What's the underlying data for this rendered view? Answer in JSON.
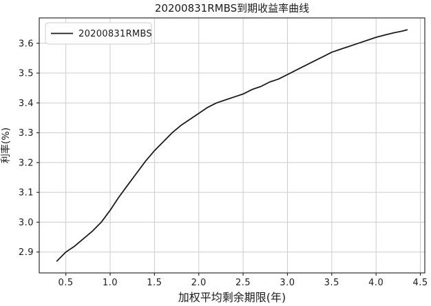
{
  "title": "20200831RMBS到期收益率曲线",
  "chart_data": {
    "type": "line",
    "title": "20200831RMBS到期收益率曲线",
    "xlabel": "加权平均剩余期限(年)",
    "ylabel": "利率(%)",
    "xlim": [
      0.2,
      4.55
    ],
    "ylim": [
      2.83,
      3.685
    ],
    "xticks": [
      0.5,
      1.0,
      1.5,
      2.0,
      2.5,
      3.0,
      3.5,
      4.0,
      4.5
    ],
    "yticks": [
      2.9,
      3.0,
      3.1,
      3.2,
      3.3,
      3.4,
      3.5,
      3.6
    ],
    "grid": true,
    "legend": {
      "position": "upper-left",
      "entries": [
        {
          "label": "20200831RMBS",
          "color": "#1a1a1a"
        }
      ]
    },
    "series": [
      {
        "name": "20200831RMBS",
        "color": "#1a1a1a",
        "x": [
          0.4,
          0.5,
          0.6,
          0.7,
          0.8,
          0.9,
          1.0,
          1.1,
          1.2,
          1.3,
          1.4,
          1.5,
          1.6,
          1.7,
          1.8,
          1.9,
          2.0,
          2.1,
          2.2,
          2.3,
          2.4,
          2.5,
          2.6,
          2.7,
          2.8,
          2.9,
          3.0,
          3.1,
          3.2,
          3.3,
          3.4,
          3.5,
          3.6,
          3.7,
          3.8,
          3.9,
          4.0,
          4.1,
          4.2,
          4.3,
          4.35
        ],
        "y": [
          2.87,
          2.9,
          2.92,
          2.945,
          2.97,
          3.0,
          3.04,
          3.085,
          3.125,
          3.165,
          3.205,
          3.24,
          3.27,
          3.3,
          3.325,
          3.345,
          3.365,
          3.385,
          3.4,
          3.41,
          3.42,
          3.43,
          3.445,
          3.455,
          3.47,
          3.48,
          3.495,
          3.51,
          3.525,
          3.54,
          3.555,
          3.57,
          3.58,
          3.59,
          3.6,
          3.61,
          3.62,
          3.628,
          3.635,
          3.641,
          3.645
        ]
      }
    ],
    "colors": {
      "line": "#1a1a1a",
      "grid": "#cccccc",
      "spine": "#2b2b2b",
      "background": "#ffffff",
      "text": "#1a1a1a"
    }
  }
}
